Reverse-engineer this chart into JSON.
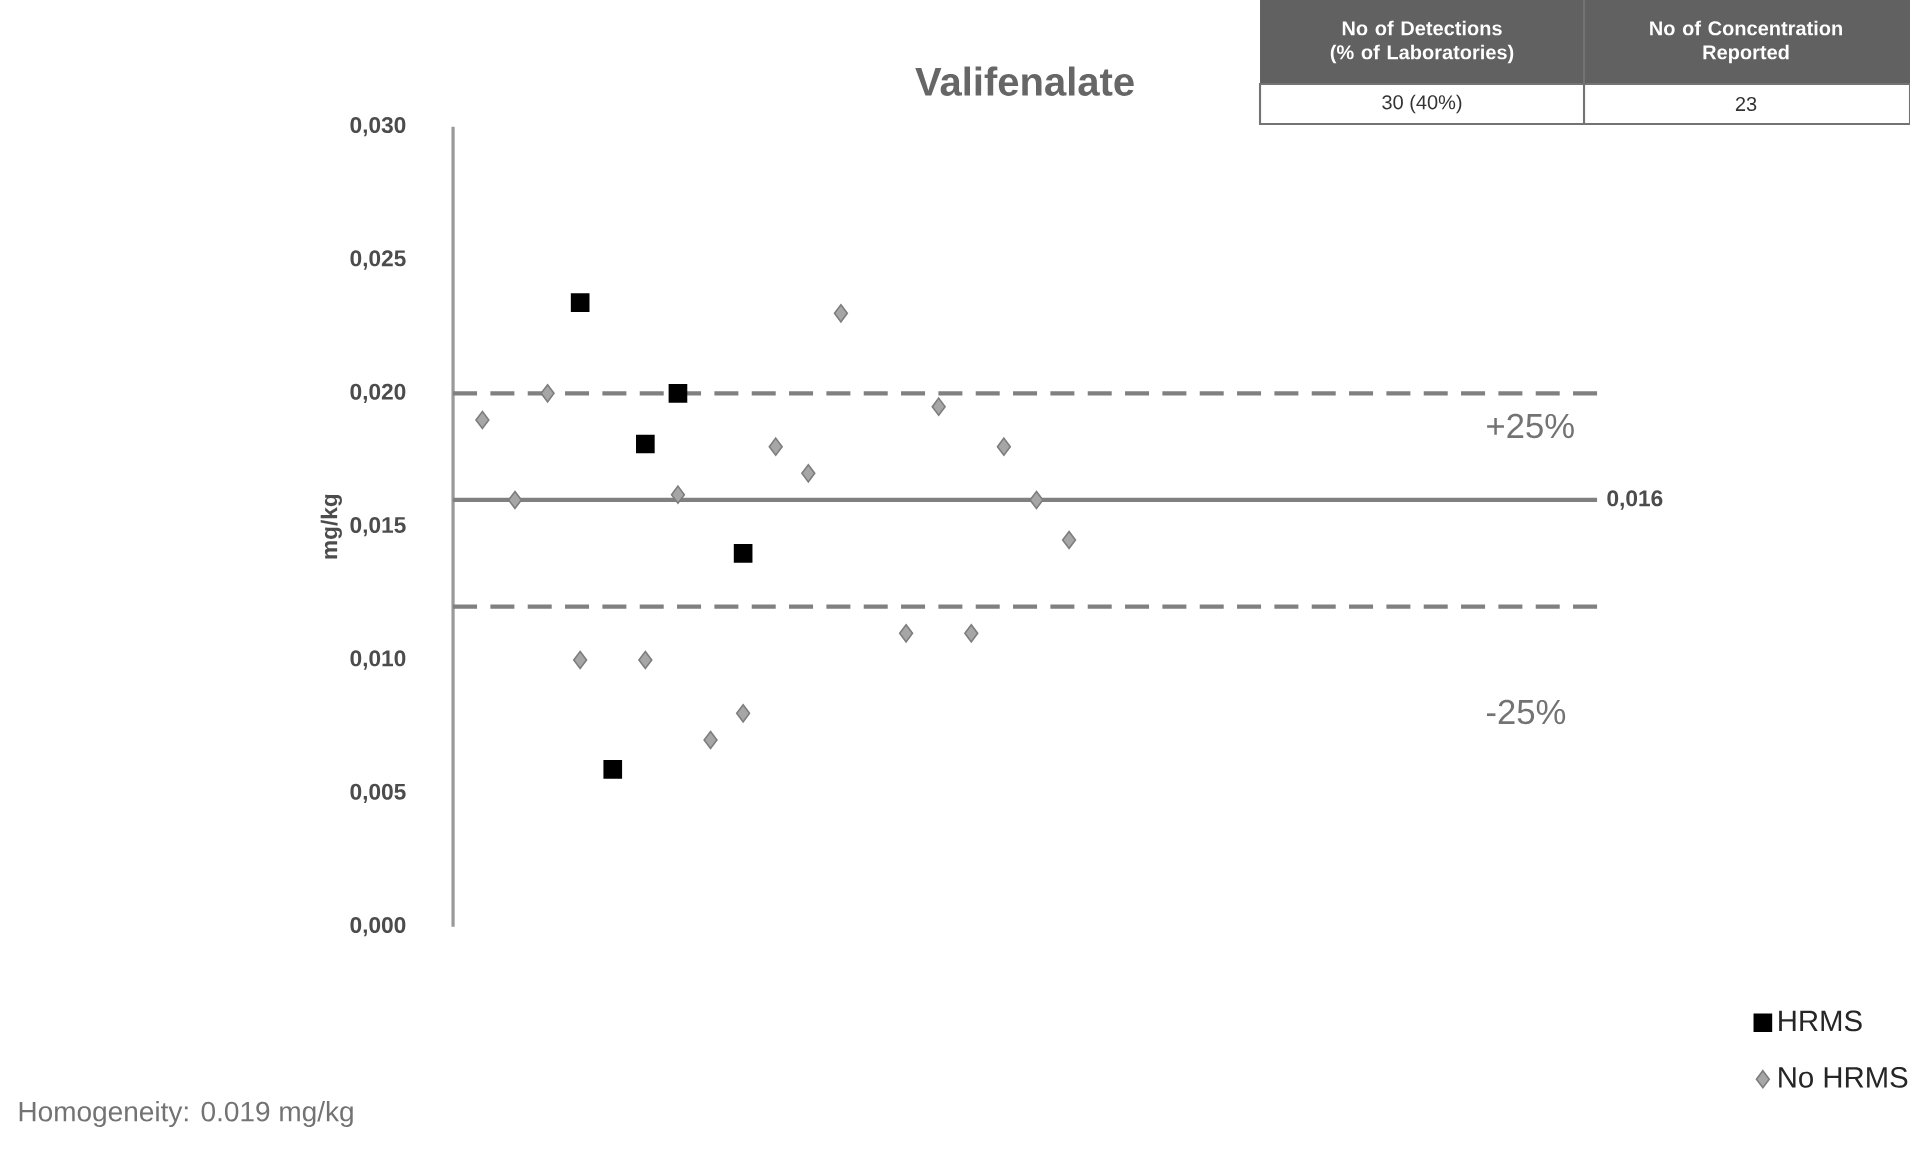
{
  "chart_data": {
    "type": "scatter",
    "title": "Valifenalate",
    "ylabel": "mg/kg",
    "categories": [
      null,
      null,
      null,
      null,
      null,
      null,
      null,
      null,
      null,
      null,
      null,
      null,
      null,
      null,
      null,
      null,
      null,
      null,
      null,
      null,
      null,
      null,
      null,
      null,
      null,
      null,
      null,
      null,
      null,
      null,
      null,
      null,
      null,
      null,
      null
    ],
    "series": [
      {
        "name": "HRMS",
        "color": "#000000",
        "marker": "square",
        "values": [
          null,
          null,
          null,
          0.0234,
          0.0059,
          0.0181,
          0.02,
          null,
          0.014,
          null,
          null,
          null,
          null,
          null,
          null,
          null,
          null,
          null,
          null,
          null,
          null,
          null,
          null,
          null,
          null,
          null,
          null,
          null,
          null,
          null,
          null,
          null,
          null,
          null,
          null
        ]
      },
      {
        "name": "No HRMS",
        "color": "#a6a6a6",
        "marker": "diamond",
        "values": [
          0.019,
          0.016,
          0.02,
          0.01,
          null,
          0.01,
          0.0162,
          0.007,
          0.008,
          0.018,
          0.017,
          0.023,
          null,
          0.011,
          0.0195,
          0.011,
          0.018,
          0.016,
          0.0145,
          null,
          null,
          null,
          null,
          null,
          null,
          null,
          null,
          null,
          null,
          null,
          null,
          null,
          null,
          null,
          null
        ]
      }
    ],
    "ylim": [
      0,
      0.03
    ],
    "yticks": [
      {
        "value": 0,
        "label": "0,000"
      },
      {
        "value": 0.005,
        "label": "0,005"
      },
      {
        "value": 0.01,
        "label": "0,010"
      },
      {
        "value": 0.015,
        "label": "0,015"
      },
      {
        "value": 0.02,
        "label": "0,020"
      },
      {
        "value": 0.025,
        "label": "0,025"
      },
      {
        "value": 0.03,
        "label": "0,030"
      }
    ],
    "ref_lines": [
      {
        "axis": "y",
        "value": 0.016,
        "label": "0,016",
        "color": "#808080",
        "line_style": "solid"
      },
      {
        "axis": "y",
        "value": 0.02,
        "color": "#808080",
        "line_style": "dashed"
      },
      {
        "axis": "y",
        "value": 0.012,
        "color": "#808080",
        "line_style": "dashed"
      }
    ],
    "legend": "bottom right",
    "grid": false,
    "annotations": [
      "No of Detections (% of Laboratories)",
      "No of Concentration Reported",
      "30 (40%)",
      "23",
      "Homogeneity: 0.019 mg/kg",
      "+25%",
      "-25%"
    ]
  }
}
